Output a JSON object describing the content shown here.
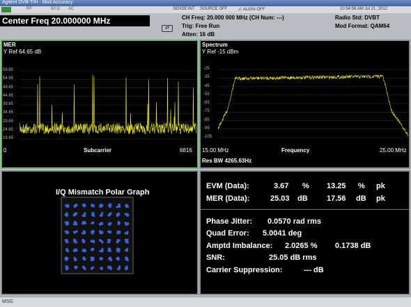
{
  "title_bar": {
    "title": "Agilent DVB-T/H - Mod Accuracy",
    "datetime": "10:54:56 AM Jul 21, 2012"
  },
  "status_bar": {
    "items": [
      "RF",
      "50 Ω",
      "AC"
    ],
    "sense": "SENSE:INT",
    "source": "SOURCE OFF",
    "align": "ALIGN OFF"
  },
  "header": {
    "center_freq": "Center Freq 20.000000 MHz",
    "ch_freq": "CH Freq: 20.000 000 MHz (CH Num: ---)",
    "trig": "Trig: Free Run",
    "atten": "Atten: 16 dB",
    "radio_std": "Radio Std: DVBT",
    "mod_format": "Mod Format: QAM64"
  },
  "mer_panel": {
    "title": "MER",
    "y_ref": "Y Ref 64.65 dB",
    "y_labels": [
      "59.65",
      "54.65",
      "49.65",
      "44.65",
      "39.65",
      "34.65",
      "29.65",
      "24.65",
      "19.65"
    ],
    "x_start": "0",
    "x_label": "Subcarrier",
    "x_end": "6816"
  },
  "spectrum_panel": {
    "title": "Spectrum",
    "y_ref": "Y Ref -15 dBm",
    "y_labels": [
      "-25",
      "-35",
      "-45",
      "-55",
      "-65",
      "-75",
      "-85",
      "-95",
      "-105"
    ],
    "x_start": "15.00 MHz",
    "x_label": "Frequency",
    "x_end": "25.00 MHz",
    "res_bw": "Res BW 4265.63Hz"
  },
  "iq_panel": {
    "title": "I/Q Mismatch Polar Graph"
  },
  "results": {
    "evm": {
      "label": "EVM (Data):",
      "value1": "3.67",
      "unit1": "%",
      "value2": "13.25",
      "unit2": "%",
      "suffix": "pk"
    },
    "mer": {
      "label": "MER (Data):",
      "value1": "25.03",
      "unit1": "dB",
      "value2": "17.56",
      "unit2": "dB",
      "suffix": "pk"
    },
    "phase_jitter": {
      "label": "Phase Jitter:",
      "value": "0.0570 rad rms"
    },
    "quad_error": {
      "label": "Quad Error:",
      "value": "5.0041 deg"
    },
    "amptd_imbalance": {
      "label": "Amptd Imbalance:",
      "value1": "2.0265 %",
      "value2": "0.1738 dB"
    },
    "snr": {
      "label": "SNR:",
      "value": "25.05 dB rms"
    },
    "carrier_suppression": {
      "label": "Carrier Suppression:",
      "value": "--- dB"
    }
  },
  "message_bar": {
    "label": "MSG"
  }
}
